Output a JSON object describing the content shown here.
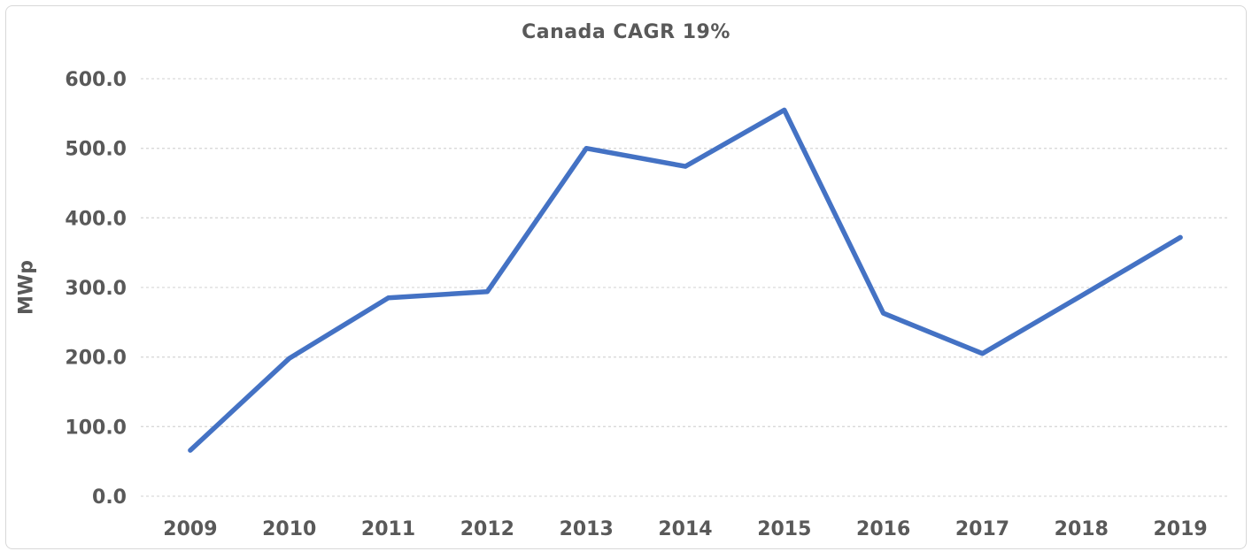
{
  "chart_data": {
    "type": "line",
    "title": "Canada CAGR 19%",
    "xlabel": "",
    "ylabel": "MWp",
    "categories": [
      "2009",
      "2010",
      "2011",
      "2012",
      "2013",
      "2014",
      "2015",
      "2016",
      "2017",
      "2018",
      "2019"
    ],
    "values": [
      66,
      198,
      285,
      294,
      500,
      474,
      555,
      263,
      205,
      288,
      372
    ],
    "ylim": [
      0,
      600
    ],
    "ytick_step": 100,
    "ytick_labels": [
      "0.0",
      "100.0",
      "200.0",
      "300.0",
      "400.0",
      "500.0",
      "600.0"
    ],
    "grid": "horizontal-dashed",
    "legend_position": "none",
    "colors": {
      "line": "#4472C4",
      "text": "#595959",
      "gridline": "#d9d9d9",
      "frame_border": "#d8d8d8",
      "background": "#ffffff"
    }
  }
}
